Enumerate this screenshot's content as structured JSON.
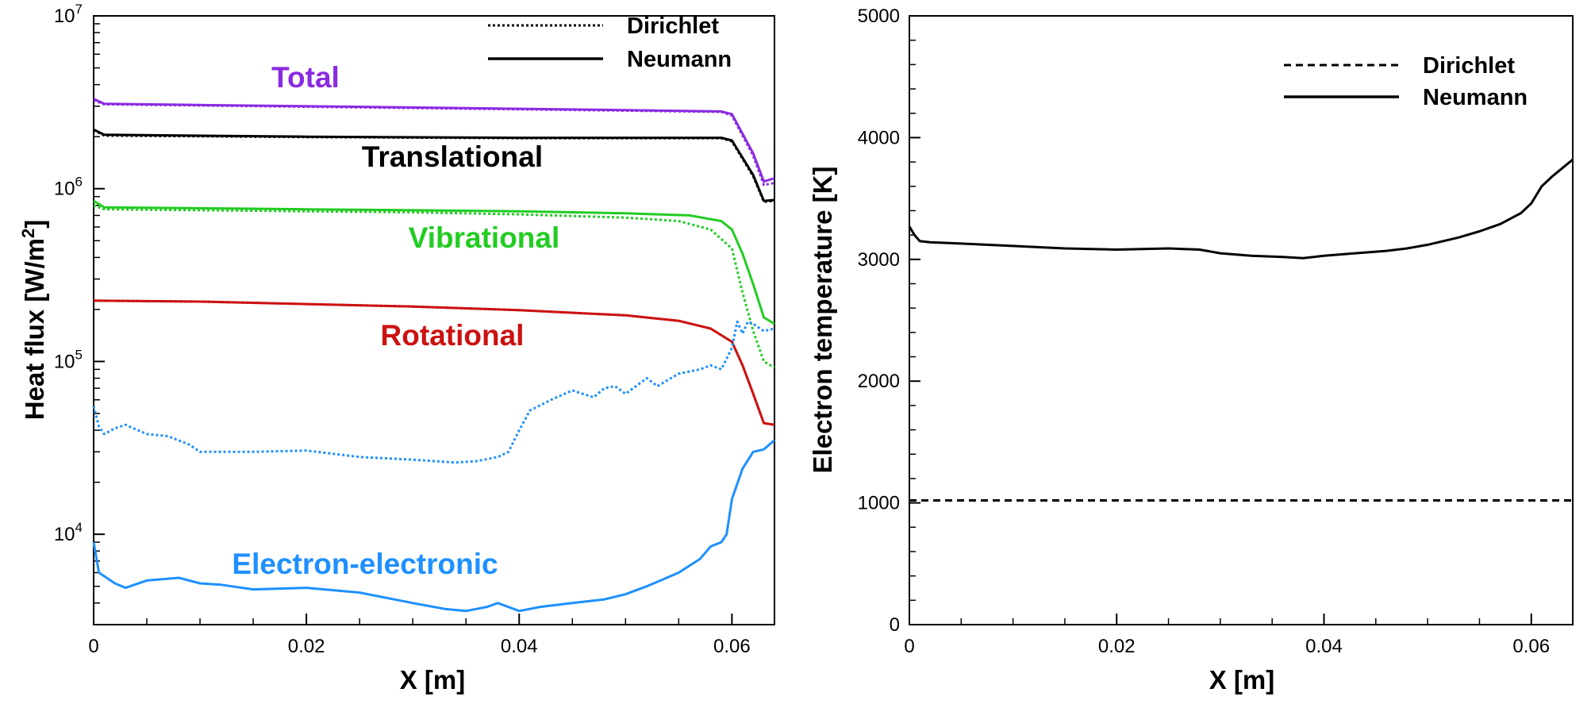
{
  "chart_data": [
    {
      "type": "line",
      "yscale": "log",
      "xlabel": "X [m]",
      "ylabel_main": "Heat flux [W/m",
      "ylabel_sup": "2",
      "ylabel_end": "]",
      "xlim": [
        0,
        0.064
      ],
      "ylim": [
        3000,
        10000000
      ],
      "x_ticks": [
        0,
        0.02,
        0.04,
        0.06
      ],
      "x_tick_labels": [
        "0",
        "0.02",
        "0.04",
        "0.06"
      ],
      "y_ticks": [
        {
          "value": 10000,
          "base": "10",
          "exp": "4"
        },
        {
          "value": 100000,
          "base": "10",
          "exp": "5"
        },
        {
          "value": 1000000,
          "base": "10",
          "exp": "6"
        },
        {
          "value": 10000000,
          "base": "10",
          "exp": "7"
        }
      ],
      "legend": [
        {
          "label": "Dirichlet",
          "style": "dotted"
        },
        {
          "label": "Neumann",
          "style": "solid"
        }
      ],
      "legend_position": "top-right",
      "series": [
        {
          "name": "Total",
          "color": "#8a2be2",
          "neumann": [
            [
              0,
              3300000
            ],
            [
              0.001,
              3100000
            ],
            [
              0.01,
              3050000
            ],
            [
              0.03,
              2950000
            ],
            [
              0.05,
              2850000
            ],
            [
              0.059,
              2800000
            ],
            [
              0.06,
              2700000
            ],
            [
              0.062,
              1600000
            ],
            [
              0.063,
              1100000
            ],
            [
              0.064,
              1150000
            ]
          ],
          "dirichlet": [
            [
              0,
              3250000
            ],
            [
              0.001,
              3080000
            ],
            [
              0.01,
              3030000
            ],
            [
              0.03,
              2930000
            ],
            [
              0.05,
              2830000
            ],
            [
              0.059,
              2780000
            ],
            [
              0.06,
              2650000
            ],
            [
              0.062,
              1550000
            ],
            [
              0.063,
              1050000
            ],
            [
              0.064,
              1080000
            ]
          ]
        },
        {
          "name": "Translational",
          "color": "#000000",
          "neumann": [
            [
              0,
              2200000
            ],
            [
              0.001,
              2050000
            ],
            [
              0.02,
              2000000
            ],
            [
              0.04,
              1970000
            ],
            [
              0.059,
              1970000
            ],
            [
              0.06,
              1900000
            ],
            [
              0.062,
              1200000
            ],
            [
              0.063,
              850000
            ],
            [
              0.064,
              860000
            ]
          ],
          "dirichlet": [
            [
              0,
              2180000
            ],
            [
              0.001,
              2030000
            ],
            [
              0.02,
              1990000
            ],
            [
              0.04,
              1960000
            ],
            [
              0.059,
              1960000
            ],
            [
              0.06,
              1880000
            ],
            [
              0.062,
              1180000
            ],
            [
              0.063,
              840000
            ],
            [
              0.064,
              850000
            ]
          ]
        },
        {
          "name": "Vibrational",
          "color": "#22cc22",
          "neumann": [
            [
              0,
              850000
            ],
            [
              0.001,
              780000
            ],
            [
              0.01,
              770000
            ],
            [
              0.02,
              760000
            ],
            [
              0.03,
              750000
            ],
            [
              0.04,
              740000
            ],
            [
              0.05,
              720000
            ],
            [
              0.056,
              700000
            ],
            [
              0.059,
              650000
            ],
            [
              0.06,
              580000
            ],
            [
              0.061,
              420000
            ],
            [
              0.062,
              280000
            ],
            [
              0.063,
              180000
            ],
            [
              0.064,
              165000
            ]
          ],
          "dirichlet": [
            [
              0,
              800000
            ],
            [
              0.001,
              760000
            ],
            [
              0.01,
              750000
            ],
            [
              0.02,
              740000
            ],
            [
              0.03,
              730000
            ],
            [
              0.04,
              710000
            ],
            [
              0.05,
              680000
            ],
            [
              0.055,
              650000
            ],
            [
              0.058,
              580000
            ],
            [
              0.06,
              450000
            ],
            [
              0.061,
              250000
            ],
            [
              0.062,
              150000
            ],
            [
              0.063,
              100000
            ],
            [
              0.064,
              92000
            ]
          ]
        },
        {
          "name": "Rotational",
          "color": "#cc1111",
          "neumann": [
            [
              0,
              225000
            ],
            [
              0.01,
              222000
            ],
            [
              0.02,
              215000
            ],
            [
              0.03,
              208000
            ],
            [
              0.04,
              198000
            ],
            [
              0.05,
              185000
            ],
            [
              0.055,
              172000
            ],
            [
              0.058,
              155000
            ],
            [
              0.06,
              130000
            ],
            [
              0.061,
              95000
            ],
            [
              0.062,
              65000
            ],
            [
              0.063,
              44000
            ],
            [
              0.064,
              43000
            ]
          ],
          "dirichlet": [
            [
              0,
              225000
            ],
            [
              0.01,
              222000
            ],
            [
              0.02,
              215000
            ],
            [
              0.03,
              208000
            ],
            [
              0.04,
              198000
            ],
            [
              0.05,
              185000
            ],
            [
              0.055,
              172000
            ],
            [
              0.058,
              155000
            ],
            [
              0.06,
              130000
            ],
            [
              0.061,
              95000
            ],
            [
              0.062,
              65000
            ],
            [
              0.063,
              44000
            ],
            [
              0.064,
              43000
            ]
          ]
        },
        {
          "name": "Electron-electronic",
          "color": "#1e90ff",
          "neumann": [
            [
              0,
              9000
            ],
            [
              0.0005,
              6000
            ],
            [
              0.002,
              5200
            ],
            [
              0.003,
              4900
            ],
            [
              0.005,
              5400
            ],
            [
              0.008,
              5600
            ],
            [
              0.01,
              5200
            ],
            [
              0.012,
              5100
            ],
            [
              0.015,
              4800
            ],
            [
              0.02,
              4900
            ],
            [
              0.025,
              4600
            ],
            [
              0.03,
              4000
            ],
            [
              0.033,
              3700
            ],
            [
              0.035,
              3600
            ],
            [
              0.037,
              3800
            ],
            [
              0.038,
              4000
            ],
            [
              0.04,
              3600
            ],
            [
              0.042,
              3800
            ],
            [
              0.045,
              4000
            ],
            [
              0.048,
              4200
            ],
            [
              0.05,
              4500
            ],
            [
              0.052,
              5000
            ],
            [
              0.055,
              6000
            ],
            [
              0.057,
              7200
            ],
            [
              0.058,
              8500
            ],
            [
              0.059,
              9000
            ],
            [
              0.0595,
              10000
            ],
            [
              0.06,
              16000
            ],
            [
              0.061,
              24000
            ],
            [
              0.062,
              30000
            ],
            [
              0.063,
              31000
            ],
            [
              0.064,
              35000
            ]
          ],
          "dirichlet": [
            [
              0,
              55000
            ],
            [
              0.0005,
              42000
            ],
            [
              0.001,
              38000
            ],
            [
              0.002,
              41000
            ],
            [
              0.003,
              43000
            ],
            [
              0.005,
              38000
            ],
            [
              0.007,
              37000
            ],
            [
              0.009,
              33000
            ],
            [
              0.01,
              30000
            ],
            [
              0.015,
              30000
            ],
            [
              0.02,
              30500
            ],
            [
              0.025,
              28000
            ],
            [
              0.03,
              27000
            ],
            [
              0.034,
              26000
            ],
            [
              0.036,
              26500
            ],
            [
              0.038,
              28000
            ],
            [
              0.039,
              30000
            ],
            [
              0.04,
              40000
            ],
            [
              0.041,
              52000
            ],
            [
              0.043,
              60000
            ],
            [
              0.045,
              68000
            ],
            [
              0.047,
              62000
            ],
            [
              0.048,
              70000
            ],
            [
              0.049,
              72000
            ],
            [
              0.05,
              65000
            ],
            [
              0.052,
              80000
            ],
            [
              0.053,
              72000
            ],
            [
              0.055,
              85000
            ],
            [
              0.057,
              90000
            ],
            [
              0.058,
              95000
            ],
            [
              0.059,
              90000
            ],
            [
              0.06,
              120000
            ],
            [
              0.0605,
              170000
            ],
            [
              0.061,
              145000
            ],
            [
              0.0615,
              170000
            ],
            [
              0.062,
              165000
            ],
            [
              0.063,
              150000
            ],
            [
              0.064,
              155000
            ]
          ]
        }
      ]
    },
    {
      "type": "line",
      "xlabel": "X [m]",
      "ylabel": "Electron temperature [K]",
      "xlim": [
        0,
        0.064
      ],
      "ylim": [
        0,
        5000
      ],
      "x_ticks": [
        0,
        0.02,
        0.04,
        0.06
      ],
      "x_tick_labels": [
        "0",
        "0.02",
        "0.04",
        "0.06"
      ],
      "y_ticks": [
        0,
        1000,
        2000,
        3000,
        4000,
        5000
      ],
      "y_tick_labels": [
        "0",
        "1000",
        "2000",
        "3000",
        "4000",
        "5000"
      ],
      "legend": [
        {
          "label": "Dirichlet",
          "style": "dashed"
        },
        {
          "label": "Neumann",
          "style": "solid"
        }
      ],
      "legend_position": "top-right",
      "series": [
        {
          "name": "Neumann",
          "color": "#000000",
          "style": "solid",
          "points": [
            [
              0,
              3270
            ],
            [
              0.0005,
              3200
            ],
            [
              0.001,
              3150
            ],
            [
              0.002,
              3140
            ],
            [
              0.005,
              3130
            ],
            [
              0.01,
              3110
            ],
            [
              0.015,
              3090
            ],
            [
              0.02,
              3080
            ],
            [
              0.025,
              3090
            ],
            [
              0.028,
              3080
            ],
            [
              0.03,
              3050
            ],
            [
              0.033,
              3030
            ],
            [
              0.036,
              3020
            ],
            [
              0.038,
              3010
            ],
            [
              0.04,
              3030
            ],
            [
              0.043,
              3050
            ],
            [
              0.046,
              3070
            ],
            [
              0.048,
              3090
            ],
            [
              0.05,
              3120
            ],
            [
              0.053,
              3180
            ],
            [
              0.055,
              3230
            ],
            [
              0.057,
              3290
            ],
            [
              0.059,
              3380
            ],
            [
              0.06,
              3460
            ],
            [
              0.061,
              3600
            ],
            [
              0.062,
              3680
            ],
            [
              0.063,
              3750
            ],
            [
              0.064,
              3820
            ]
          ]
        },
        {
          "name": "Dirichlet",
          "color": "#000000",
          "style": "dashed",
          "points": [
            [
              0,
              1020
            ],
            [
              0.064,
              1020
            ]
          ]
        }
      ]
    }
  ]
}
